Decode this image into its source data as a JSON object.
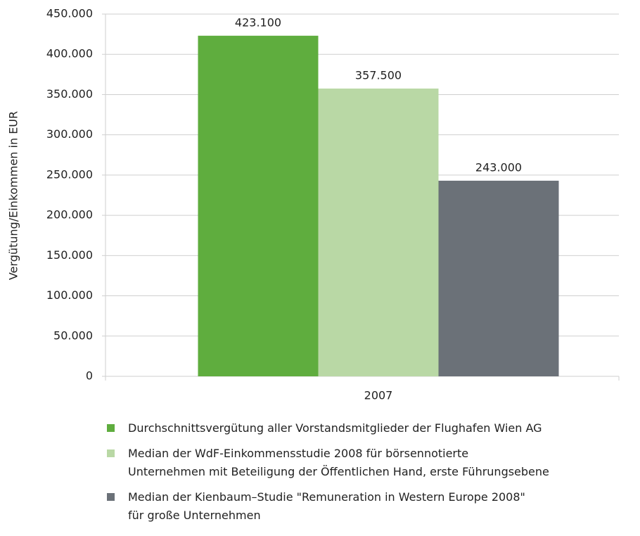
{
  "chart_data": {
    "type": "bar",
    "y_label": "Vergütung/Einkommen in EUR",
    "categories": [
      "2007"
    ],
    "series": [
      {
        "name": "Durchschnittsvergütung aller Vorstandsmitglieder der Flughafen Wien AG",
        "color": "#5fad3e",
        "values": [
          423100
        ],
        "value_labels": [
          "423.100"
        ]
      },
      {
        "name": "Median der WdF-Einkommensstudie 2008 für börsennotierte\nUnternehmen mit Beteiligung der Öffentlichen Hand, erste Führungsebene",
        "color": "#b9d8a5",
        "values": [
          357500
        ],
        "value_labels": [
          "357.500"
        ]
      },
      {
        "name": "Median der Kienbaum–Studie \"Remuneration in Western Europe 2008\"\nfür große Unternehmen",
        "color": "#6b7178",
        "values": [
          243000
        ],
        "value_labels": [
          "243.000"
        ]
      }
    ],
    "ylim": [
      0,
      450000
    ],
    "yticks": [
      {
        "value": 0,
        "label": "0"
      },
      {
        "value": 50000,
        "label": "50.000"
      },
      {
        "value": 100000,
        "label": "100.000"
      },
      {
        "value": 150000,
        "label": "150.000"
      },
      {
        "value": 200000,
        "label": "200.000"
      },
      {
        "value": 250000,
        "label": "250.000"
      },
      {
        "value": 300000,
        "label": "300.000"
      },
      {
        "value": 350000,
        "label": "350.000"
      },
      {
        "value": 400000,
        "label": "400.000"
      },
      {
        "value": 450000,
        "label": "450.000"
      }
    ],
    "grid": true,
    "legend": "bottom"
  }
}
